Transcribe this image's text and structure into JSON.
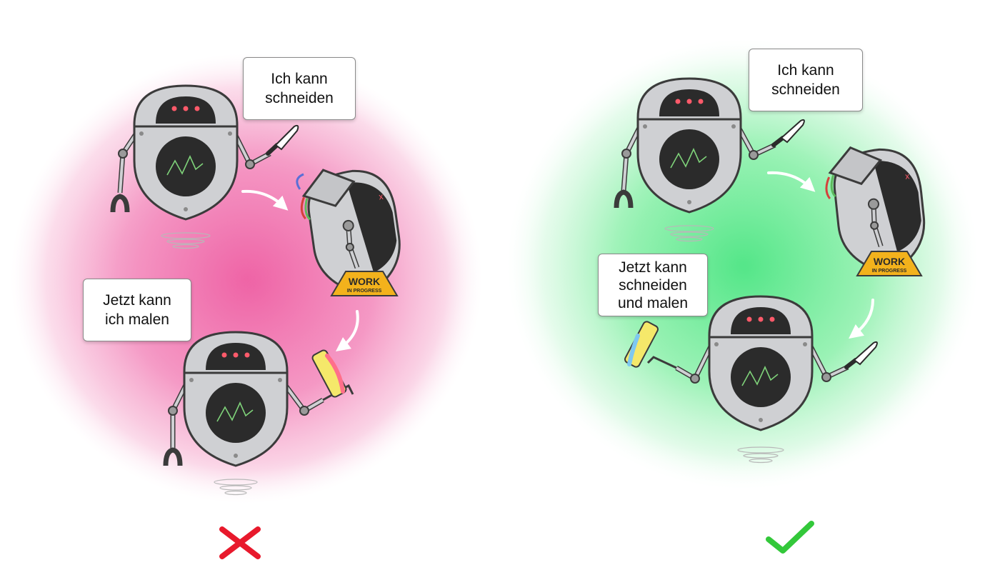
{
  "colors": {
    "wrong_glow": "#f06aaa",
    "right_glow": "#5ee88e",
    "wrong_mark": "#e8192c",
    "right_mark": "#33c83a",
    "robot_body": "#cfd0d3",
    "robot_outline": "#3b3b3b",
    "robot_screen": "#2b2b2b",
    "robot_eyes": "#ff5a6a",
    "robot_pulse": "#7fd37a",
    "sign_color": "#f3b21c",
    "knife_blade": "#ffffff"
  },
  "panels": [
    {
      "id": "wrong",
      "verdict_icon": "cross-icon",
      "bubbles": [
        {
          "lines": [
            "Ich kann",
            "schneiden"
          ]
        },
        {
          "lines": [
            "Jetzt kann",
            "ich malen"
          ]
        }
      ],
      "sign": {
        "line1": "WORK",
        "line2": "IN PROGRESS"
      }
    },
    {
      "id": "right",
      "verdict_icon": "check-icon",
      "bubbles": [
        {
          "lines": [
            "Ich kann",
            "schneiden"
          ]
        },
        {
          "lines": [
            "Jetzt kann",
            "schneiden",
            "und malen"
          ]
        }
      ],
      "sign": {
        "line1": "WORK",
        "line2": "IN PROGRESS"
      }
    }
  ]
}
